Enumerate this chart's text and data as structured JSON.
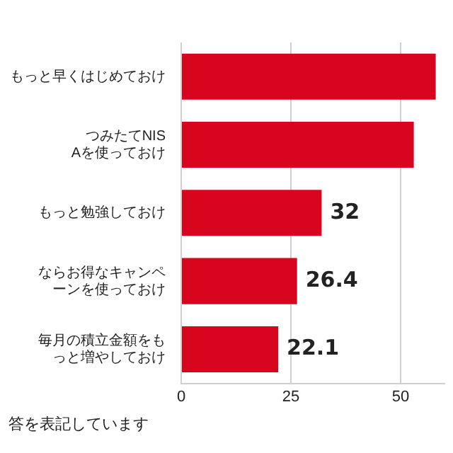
{
  "chart_data": {
    "type": "bar",
    "orientation": "horizontal",
    "categories": [
      "もっと早くはじめておけ",
      "つみたてNISAを使っておけ",
      "もっと勉強しておけ",
      "ならお得なキャンペーンを使っておけ",
      "毎月の積立金額をもっと増やしておけ"
    ],
    "values": [
      58,
      53,
      32,
      26.4,
      22.1
    ],
    "value_labels": [
      null,
      null,
      "32",
      "26.4",
      "22.1"
    ],
    "color": "#d7061e",
    "xlim": [
      0,
      60
    ],
    "xticks": [
      0,
      25,
      50
    ],
    "grid": "x",
    "annotations": [
      "答を表記しています"
    ]
  }
}
